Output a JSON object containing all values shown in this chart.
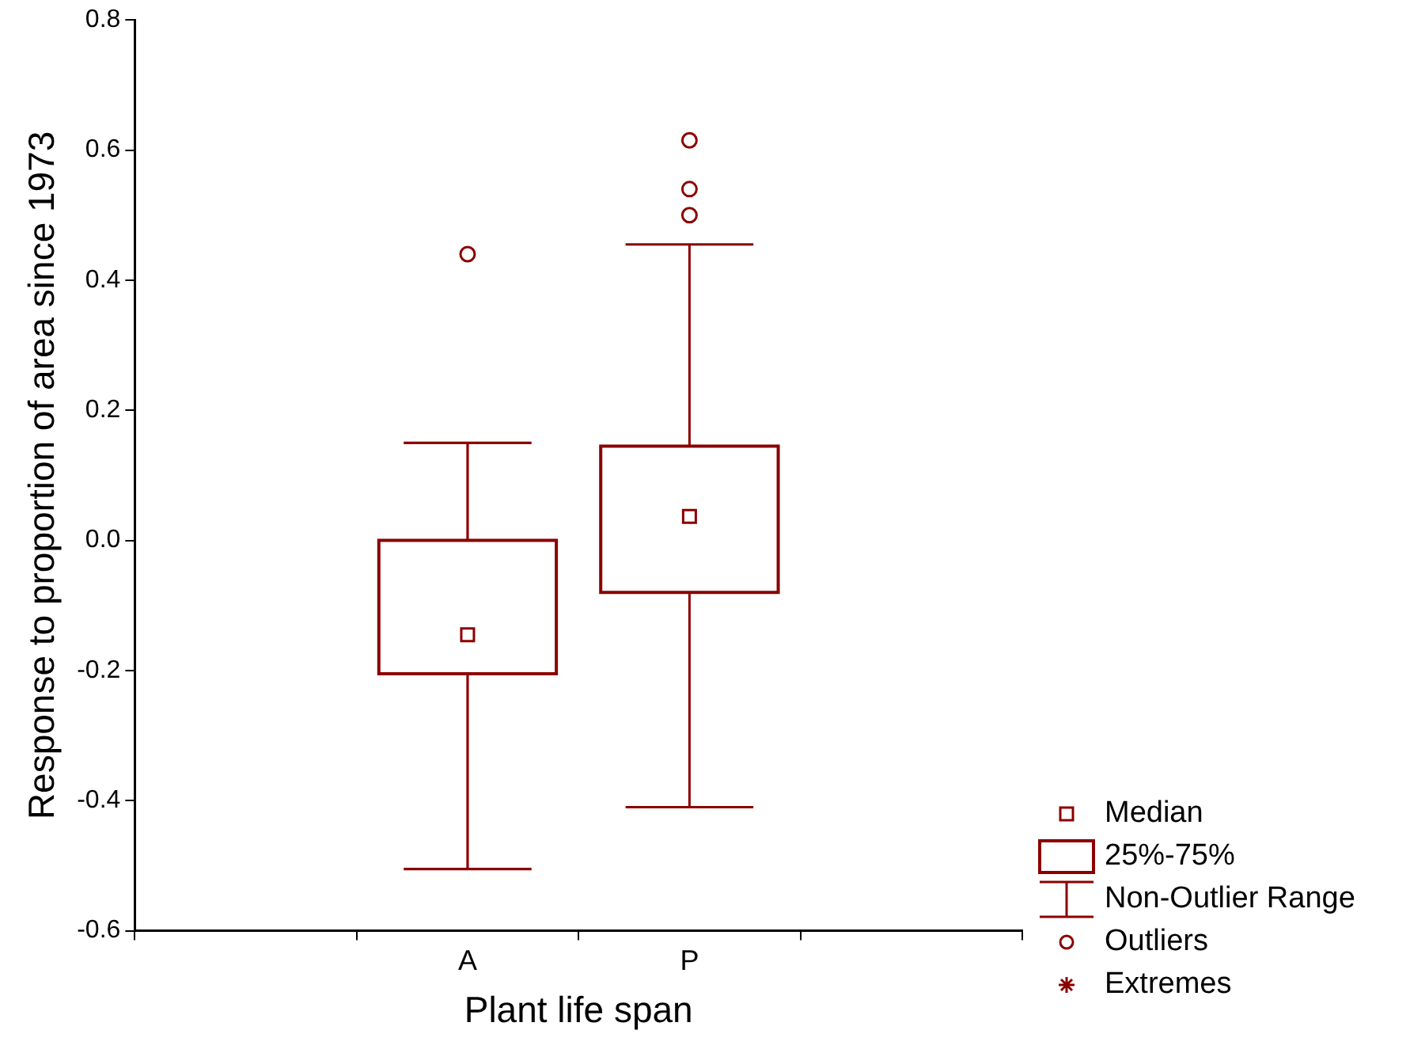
{
  "chart_data": {
    "type": "box",
    "xlabel": "Plant life span",
    "ylabel": "Response to proportion of area since 1973",
    "categories": [
      null,
      "A",
      "P",
      null
    ],
    "boxes": [
      null,
      {
        "low": -0.505,
        "q1": -0.205,
        "median": -0.145,
        "q3": 0.0,
        "high": 0.15,
        "outliers": [
          0.44
        ]
      },
      {
        "low": -0.41,
        "q1": -0.08,
        "median": 0.037,
        "q3": 0.145,
        "high": 0.455,
        "outliers": [
          0.615,
          0.54,
          0.5
        ]
      },
      null
    ],
    "color": "#8b0000",
    "ylim": [
      -0.6,
      0.8
    ],
    "yticks": [
      -0.6,
      -0.4,
      -0.2,
      {
        "value": 0,
        "label": "0.0"
      },
      0.2,
      0.4,
      0.6,
      0.8
    ],
    "grid": false,
    "annotations": [
      "Median",
      "25%-75%",
      "Non-Outlier Range",
      "Outliers",
      "Extremes"
    ]
  }
}
